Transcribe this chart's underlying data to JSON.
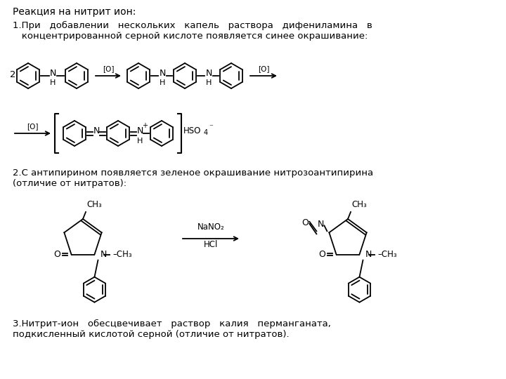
{
  "title": "Реакция на нитрит ион:",
  "bg_color": "#ffffff",
  "text_color": "#000000",
  "line_color": "#000000",
  "section1_line1": "1.При   добавлении   нескольких   капель   раствора   дифениламина   в",
  "section1_line2": "   концентрированной серной кислоте появляется синее окрашивание:",
  "section2_line1": "2.С антипирином появляется зеленое окрашивание нитрозоантипирина",
  "section2_line2": "(отличие от нитратов):",
  "section3_line1": "3.Нитрит-ион   обесцвечивает   раствор   калия   перманганата,",
  "section3_line2": "подкисленный кислотой серной (отличие от нитратов)."
}
